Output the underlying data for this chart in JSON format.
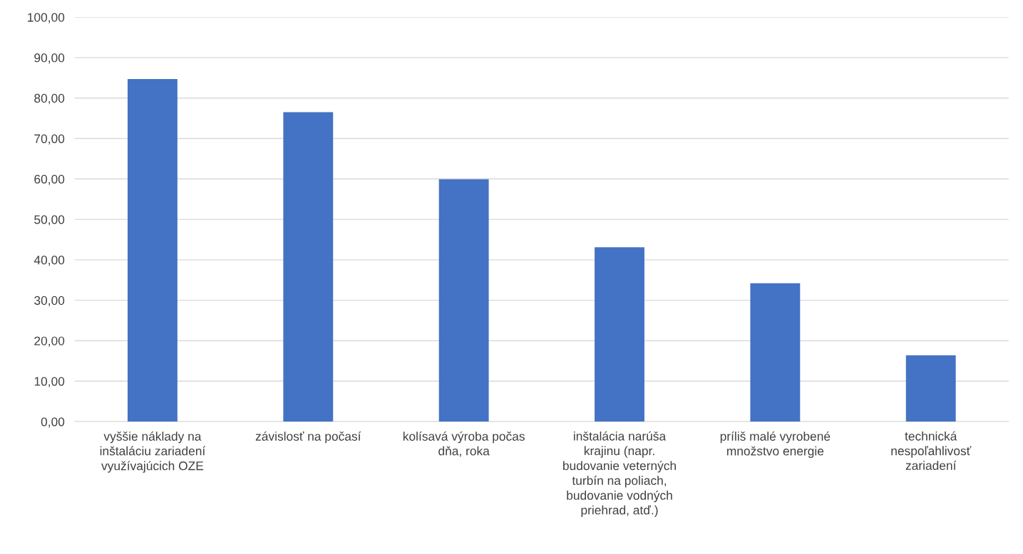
{
  "chart_data": {
    "type": "bar",
    "categories": [
      "vyššie náklady na\ninštaláciu zariadení\nvyužívajúcich OZE",
      "závislosť na počasí",
      "kolísavá výroba počas\ndňa, roka",
      "inštalácia narúša\nkrajinu (napr.\nbudovanie veterných\nturbín na poliach,\nbudovanie vodných\npriehrad, atď.)",
      "príliš malé vyrobené\nmnožstvo energie",
      "technická\nnespoľahlivosť\nzariadení"
    ],
    "values": [
      84.7,
      76.5,
      59.9,
      43.1,
      34.2,
      16.4
    ],
    "color": "#4472c4",
    "ylim": [
      0,
      100
    ],
    "yticks": [
      {
        "value": 0,
        "label": "0,00"
      },
      {
        "value": 10,
        "label": "10,00"
      },
      {
        "value": 20,
        "label": "20,00"
      },
      {
        "value": 30,
        "label": "30,00"
      },
      {
        "value": 40,
        "label": "40,00"
      },
      {
        "value": 50,
        "label": "50,00"
      },
      {
        "value": 60,
        "label": "60,00"
      },
      {
        "value": 70,
        "label": "70,00"
      },
      {
        "value": 80,
        "label": "80,00"
      },
      {
        "value": 90,
        "label": "90,00"
      },
      {
        "value": 100,
        "label": "100,00"
      }
    ],
    "grid": "y"
  }
}
